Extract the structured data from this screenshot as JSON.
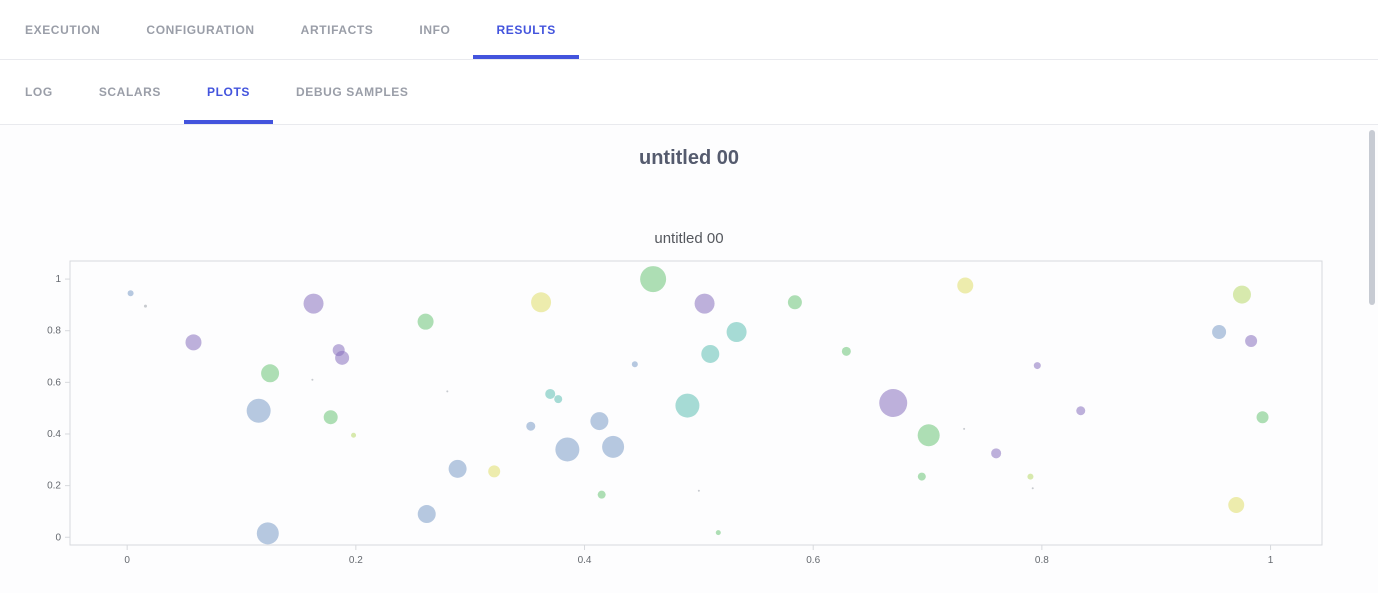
{
  "tabs": {
    "items": [
      {
        "label": "EXECUTION",
        "active": false
      },
      {
        "label": "CONFIGURATION",
        "active": false
      },
      {
        "label": "ARTIFACTS",
        "active": false
      },
      {
        "label": "INFO",
        "active": false
      },
      {
        "label": "RESULTS",
        "active": true
      }
    ]
  },
  "subtabs": {
    "items": [
      {
        "label": "LOG",
        "active": false
      },
      {
        "label": "SCALARS",
        "active": false
      },
      {
        "label": "PLOTS",
        "active": true
      },
      {
        "label": "DEBUG SAMPLES",
        "active": false
      }
    ]
  },
  "content": {
    "group_title": "untitled 00"
  },
  "colors": {
    "accent": "#4354dd",
    "tab_inactive": "#9a9ea8",
    "title": "#555b6e",
    "axis_line": "#d7d9dd",
    "tick_text": "#65696f"
  },
  "chart_data": {
    "type": "scatter",
    "title": "untitled 00",
    "xlabel": "",
    "ylabel": "",
    "grid": false,
    "legend": false,
    "xlim": [
      -0.05,
      1.045
    ],
    "ylim": [
      -0.03,
      1.07
    ],
    "x_ticks": [
      0,
      0.2,
      0.4,
      0.6,
      0.8,
      1
    ],
    "y_ticks": [
      0,
      0.2,
      0.4,
      0.6,
      0.8,
      1
    ],
    "point_opacity": 0.55,
    "palette": {
      "purple": "#8871bd",
      "green": "#6cc476",
      "yellow": "#e0de6a",
      "lime": "#b8d96a",
      "blue": "#7b9cc7",
      "teal": "#5fc0b2",
      "gray": "#9aa0a8"
    },
    "points": [
      {
        "x": 0.003,
        "y": 0.945,
        "r": 3,
        "c": "blue"
      },
      {
        "x": 0.016,
        "y": 0.895,
        "r": 1.5,
        "c": "gray"
      },
      {
        "x": 0.058,
        "y": 0.755,
        "r": 8,
        "c": "purple"
      },
      {
        "x": 0.125,
        "y": 0.635,
        "r": 9,
        "c": "green"
      },
      {
        "x": 0.163,
        "y": 0.905,
        "r": 10,
        "c": "purple"
      },
      {
        "x": 0.115,
        "y": 0.49,
        "r": 12,
        "c": "blue"
      },
      {
        "x": 0.185,
        "y": 0.725,
        "r": 6,
        "c": "purple"
      },
      {
        "x": 0.188,
        "y": 0.695,
        "r": 7,
        "c": "purple"
      },
      {
        "x": 0.162,
        "y": 0.61,
        "r": 1,
        "c": "gray"
      },
      {
        "x": 0.178,
        "y": 0.465,
        "r": 7,
        "c": "green"
      },
      {
        "x": 0.198,
        "y": 0.395,
        "r": 2.5,
        "c": "lime"
      },
      {
        "x": 0.261,
        "y": 0.835,
        "r": 8,
        "c": "green"
      },
      {
        "x": 0.123,
        "y": 0.015,
        "r": 11,
        "c": "blue"
      },
      {
        "x": 0.262,
        "y": 0.09,
        "r": 9,
        "c": "blue"
      },
      {
        "x": 0.289,
        "y": 0.265,
        "r": 9,
        "c": "blue"
      },
      {
        "x": 0.28,
        "y": 0.565,
        "r": 1,
        "c": "gray"
      },
      {
        "x": 0.321,
        "y": 0.255,
        "r": 6,
        "c": "yellow"
      },
      {
        "x": 0.353,
        "y": 0.43,
        "r": 4.5,
        "c": "blue"
      },
      {
        "x": 0.362,
        "y": 0.91,
        "r": 10,
        "c": "yellow"
      },
      {
        "x": 0.37,
        "y": 0.555,
        "r": 5,
        "c": "teal"
      },
      {
        "x": 0.377,
        "y": 0.535,
        "r": 4,
        "c": "teal"
      },
      {
        "x": 0.385,
        "y": 0.34,
        "r": 12,
        "c": "blue"
      },
      {
        "x": 0.413,
        "y": 0.45,
        "r": 9,
        "c": "blue"
      },
      {
        "x": 0.415,
        "y": 0.165,
        "r": 4,
        "c": "green"
      },
      {
        "x": 0.425,
        "y": 0.35,
        "r": 11,
        "c": "blue"
      },
      {
        "x": 0.444,
        "y": 0.67,
        "r": 3,
        "c": "blue"
      },
      {
        "x": 0.46,
        "y": 1.0,
        "r": 13,
        "c": "green"
      },
      {
        "x": 0.49,
        "y": 0.51,
        "r": 12,
        "c": "teal"
      },
      {
        "x": 0.5,
        "y": 0.18,
        "r": 1,
        "c": "gray"
      },
      {
        "x": 0.505,
        "y": 0.905,
        "r": 10,
        "c": "purple"
      },
      {
        "x": 0.51,
        "y": 0.71,
        "r": 9,
        "c": "teal"
      },
      {
        "x": 0.517,
        "y": 0.018,
        "r": 2.5,
        "c": "green"
      },
      {
        "x": 0.533,
        "y": 0.795,
        "r": 10,
        "c": "teal"
      },
      {
        "x": 0.584,
        "y": 0.91,
        "r": 7,
        "c": "green"
      },
      {
        "x": 0.629,
        "y": 0.72,
        "r": 4.5,
        "c": "green"
      },
      {
        "x": 0.67,
        "y": 0.52,
        "r": 14,
        "c": "purple"
      },
      {
        "x": 0.695,
        "y": 0.235,
        "r": 4,
        "c": "green"
      },
      {
        "x": 0.701,
        "y": 0.395,
        "r": 11,
        "c": "green"
      },
      {
        "x": 0.732,
        "y": 0.42,
        "r": 1,
        "c": "gray"
      },
      {
        "x": 0.733,
        "y": 0.975,
        "r": 8,
        "c": "yellow"
      },
      {
        "x": 0.76,
        "y": 0.325,
        "r": 5,
        "c": "purple"
      },
      {
        "x": 0.796,
        "y": 0.665,
        "r": 3.5,
        "c": "purple"
      },
      {
        "x": 0.79,
        "y": 0.235,
        "r": 3,
        "c": "lime"
      },
      {
        "x": 0.792,
        "y": 0.19,
        "r": 1,
        "c": "gray"
      },
      {
        "x": 0.834,
        "y": 0.49,
        "r": 4.5,
        "c": "purple"
      },
      {
        "x": 0.955,
        "y": 0.795,
        "r": 7,
        "c": "blue"
      },
      {
        "x": 0.975,
        "y": 0.94,
        "r": 9,
        "c": "lime"
      },
      {
        "x": 0.983,
        "y": 0.76,
        "r": 6,
        "c": "purple"
      },
      {
        "x": 0.993,
        "y": 0.465,
        "r": 6,
        "c": "green"
      },
      {
        "x": 0.97,
        "y": 0.125,
        "r": 8,
        "c": "yellow"
      }
    ]
  }
}
